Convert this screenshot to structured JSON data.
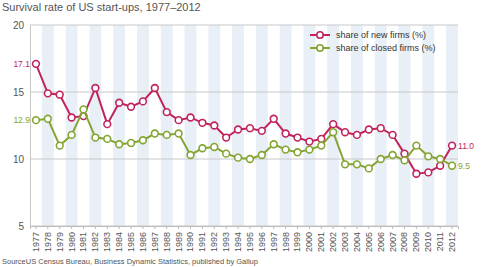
{
  "chart_data": {
    "type": "line",
    "title": "Survival rate of US start-ups, 1977–2012",
    "source": "SourceUS Census Bureau, Business Dynamic Statistics, published by Gallup",
    "categories": [
      "1977",
      "1978",
      "1979",
      "1980",
      "1981",
      "1982",
      "1983",
      "1984",
      "1985",
      "1986",
      "1987",
      "1988",
      "1989",
      "1990",
      "1991",
      "1992",
      "1993",
      "1994",
      "1995",
      "1996",
      "1997",
      "1998",
      "1999",
      "2000",
      "2001",
      "2002",
      "2003",
      "2004",
      "2005",
      "2006",
      "2007",
      "2008",
      "2009",
      "2010",
      "2011",
      "2012"
    ],
    "series": [
      {
        "name": "share of new firms (%)",
        "color": "#c0245c",
        "marker": "circle",
        "values": [
          17.1,
          14.9,
          14.8,
          13.1,
          13.2,
          15.3,
          12.6,
          14.2,
          13.9,
          14.3,
          15.3,
          13.5,
          12.9,
          13.1,
          12.7,
          12.5,
          11.6,
          12.2,
          12.3,
          12.1,
          13.0,
          11.9,
          11.6,
          11.3,
          11.5,
          12.6,
          12.0,
          11.8,
          12.2,
          12.3,
          11.8,
          10.4,
          8.9,
          9.0,
          9.5,
          11.0
        ],
        "value_labels": [
          "17.1",
          null,
          null,
          null,
          null,
          null,
          null,
          null,
          null,
          null,
          null,
          null,
          null,
          null,
          null,
          null,
          null,
          null,
          null,
          null,
          null,
          null,
          null,
          null,
          null,
          null,
          null,
          null,
          null,
          null,
          null,
          null,
          null,
          null,
          null,
          "11.0"
        ]
      },
      {
        "name": "share of closed firms (%)",
        "color": "#84a532",
        "marker": "circle",
        "values": [
          12.9,
          13.0,
          11.0,
          11.8,
          13.7,
          11.6,
          11.5,
          11.1,
          11.2,
          11.4,
          11.9,
          11.8,
          11.9,
          10.3,
          10.8,
          10.9,
          10.4,
          10.1,
          10.0,
          10.3,
          11.1,
          10.7,
          10.5,
          10.7,
          11.0,
          12.0,
          9.6,
          9.6,
          9.3,
          10.0,
          10.3,
          9.9,
          11.0,
          10.2,
          10.0,
          9.5
        ],
        "value_labels": [
          "12.9",
          null,
          null,
          null,
          null,
          null,
          null,
          null,
          null,
          null,
          null,
          null,
          null,
          null,
          null,
          null,
          null,
          null,
          null,
          null,
          null,
          null,
          null,
          null,
          null,
          null,
          null,
          null,
          null,
          null,
          null,
          null,
          null,
          null,
          null,
          "9.5"
        ]
      }
    ],
    "ylim": [
      5,
      20
    ],
    "yticks": [
      5,
      10,
      15,
      20
    ],
    "grid": true,
    "legend": "upper right"
  }
}
